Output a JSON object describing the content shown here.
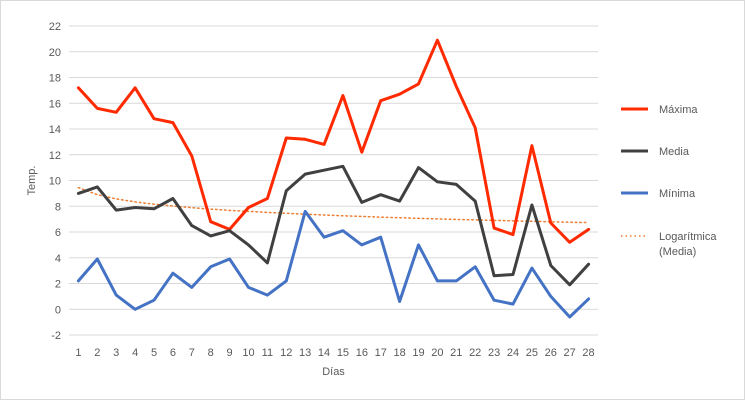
{
  "chart_data": {
    "type": "line",
    "title": "",
    "xlabel": "Días",
    "ylabel": "Temp.",
    "ylim": [
      -2,
      22
    ],
    "y_ticks": [
      -2,
      0,
      2,
      4,
      6,
      8,
      10,
      12,
      14,
      16,
      18,
      20,
      22
    ],
    "grid": true,
    "legend_position": "right",
    "x": [
      "1",
      "2",
      "3",
      "4",
      "5",
      "6",
      "7",
      "8",
      "9",
      "10",
      "11",
      "12",
      "13",
      "14",
      "15",
      "16",
      "17",
      "18",
      "19",
      "20",
      "21",
      "22",
      "23",
      "24",
      "25",
      "26",
      "27",
      "28"
    ],
    "series": [
      {
        "name": "Máxima",
        "color": "#ff2a00",
        "style": "solid",
        "values": [
          17.2,
          15.6,
          15.3,
          17.2,
          14.8,
          14.5,
          11.9,
          6.8,
          6.2,
          7.9,
          8.6,
          13.3,
          13.2,
          12.8,
          16.6,
          12.2,
          16.2,
          16.7,
          17.5,
          20.9,
          17.3,
          14.1,
          6.3,
          5.8,
          12.7,
          6.7,
          5.2,
          6.2
        ]
      },
      {
        "name": "Media",
        "color": "#404040",
        "style": "solid",
        "values": [
          9.0,
          9.5,
          7.7,
          7.9,
          7.8,
          8.6,
          6.5,
          5.7,
          6.1,
          5.0,
          3.6,
          9.2,
          10.5,
          10.8,
          11.1,
          8.3,
          8.9,
          8.4,
          11.0,
          9.9,
          9.7,
          8.4,
          2.6,
          2.7,
          8.1,
          3.4,
          1.9,
          3.5
        ]
      },
      {
        "name": "Mínima",
        "color": "#4472c4",
        "style": "solid",
        "values": [
          2.2,
          3.9,
          1.1,
          0.0,
          0.7,
          2.8,
          1.7,
          3.3,
          3.9,
          1.7,
          1.1,
          2.2,
          7.6,
          5.6,
          6.1,
          5.0,
          5.6,
          0.6,
          5.0,
          2.2,
          2.2,
          3.3,
          0.7,
          0.4,
          3.2,
          1.0,
          -0.6,
          0.8
        ]
      },
      {
        "name": "Logarítmica (Media)",
        "color": "#ed7d31",
        "style": "dotted",
        "values": [
          9.45,
          8.9,
          8.57,
          8.34,
          8.16,
          8.02,
          7.89,
          7.78,
          7.68,
          7.6,
          7.52,
          7.45,
          7.38,
          7.32,
          7.26,
          7.21,
          7.15,
          7.11,
          7.06,
          7.02,
          6.98,
          6.94,
          6.9,
          6.86,
          6.83,
          6.79,
          6.76,
          6.73
        ]
      }
    ],
    "legend": [
      {
        "lines": [
          "Máxima"
        ]
      },
      {
        "lines": [
          "Media"
        ]
      },
      {
        "lines": [
          "Mínima"
        ]
      },
      {
        "lines": [
          "Logarítmica",
          "(Media)"
        ]
      }
    ]
  }
}
